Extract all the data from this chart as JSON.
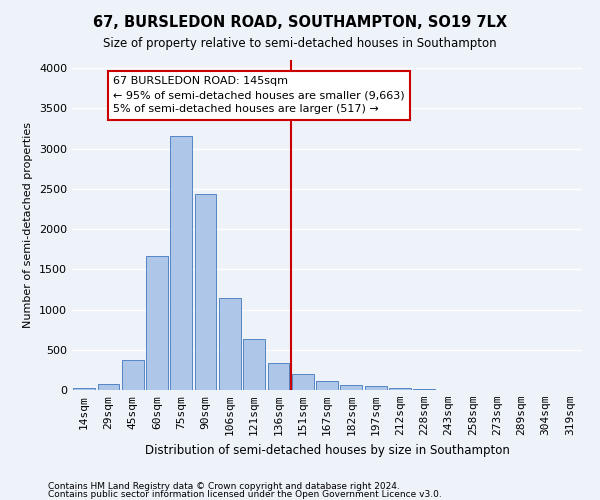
{
  "title": "67, BURSLEDON ROAD, SOUTHAMPTON, SO19 7LX",
  "subtitle": "Size of property relative to semi-detached houses in Southampton",
  "xlabel": "Distribution of semi-detached houses by size in Southampton",
  "ylabel": "Number of semi-detached properties",
  "footnote1": "Contains HM Land Registry data © Crown copyright and database right 2024.",
  "footnote2": "Contains public sector information licensed under the Open Government Licence v3.0.",
  "annotation_title": "67 BURSLEDON ROAD: 145sqm",
  "annotation_line1": "← 95% of semi-detached houses are smaller (9,663)",
  "annotation_line2": "5% of semi-detached houses are larger (517) →",
  "bar_categories": [
    "14sqm",
    "29sqm",
    "45sqm",
    "60sqm",
    "75sqm",
    "90sqm",
    "106sqm",
    "121sqm",
    "136sqm",
    "151sqm",
    "167sqm",
    "182sqm",
    "197sqm",
    "212sqm",
    "228sqm",
    "243sqm",
    "258sqm",
    "273sqm",
    "289sqm",
    "304sqm",
    "319sqm"
  ],
  "bar_values": [
    20,
    80,
    370,
    1660,
    3150,
    2430,
    1140,
    630,
    340,
    200,
    110,
    65,
    45,
    20,
    10,
    5,
    5,
    5,
    5,
    5,
    5
  ],
  "bar_color": "#aec6e8",
  "bar_edge_color": "#5585c5",
  "vline_color": "#cc0000",
  "ylim": [
    0,
    4100
  ],
  "background_color": "#eef2f9",
  "grid_color": "#ffffff",
  "annotation_box_color": "#ffffff",
  "annotation_box_edge": "#cc0000",
  "title_fontsize": 10.5,
  "subtitle_fontsize": 8.5,
  "xlabel_fontsize": 8.5,
  "ylabel_fontsize": 8.0,
  "tick_fontsize": 8.0,
  "annot_fontsize": 8.0,
  "footnote_fontsize": 6.5
}
